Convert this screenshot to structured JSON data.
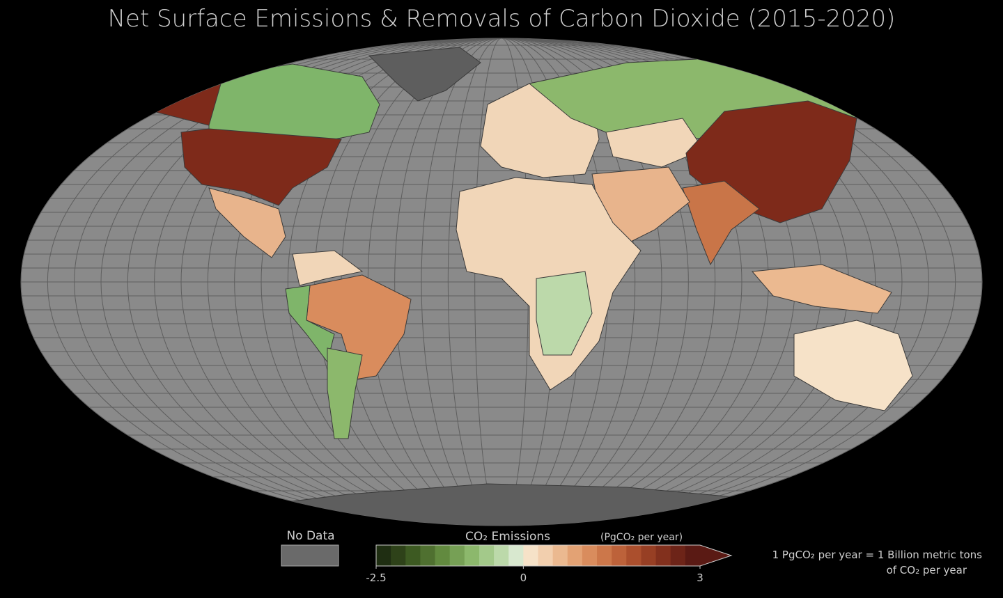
{
  "title": "Net Surface Emissions & Removals of Carbon Dioxide (2015-2020)",
  "legend": {
    "no_data": "No Data",
    "title": "CO₂ Emissions",
    "units": "(PgCO₂ per year)",
    "range": [
      -2.5,
      3
    ],
    "ticks": [
      -2.5,
      0,
      3
    ],
    "colors": [
      "#1f2e12",
      "#2e4219",
      "#3d5a22",
      "#4f7030",
      "#628a3f",
      "#76a055",
      "#8cb86c",
      "#a3c98a",
      "#bcd9aa",
      "#d8e8cf",
      "#f6e2c8",
      "#f2cfae",
      "#ebb990",
      "#e3a274",
      "#d98c5d",
      "#cc774a",
      "#bd623a",
      "#ab4f2d",
      "#973f24",
      "#82301d",
      "#6d2418",
      "#5a1a14"
    ]
  },
  "note": [
    "1 PgCO₂ per year = 1 Billion metric tons",
    "of CO₂ per year"
  ]
}
